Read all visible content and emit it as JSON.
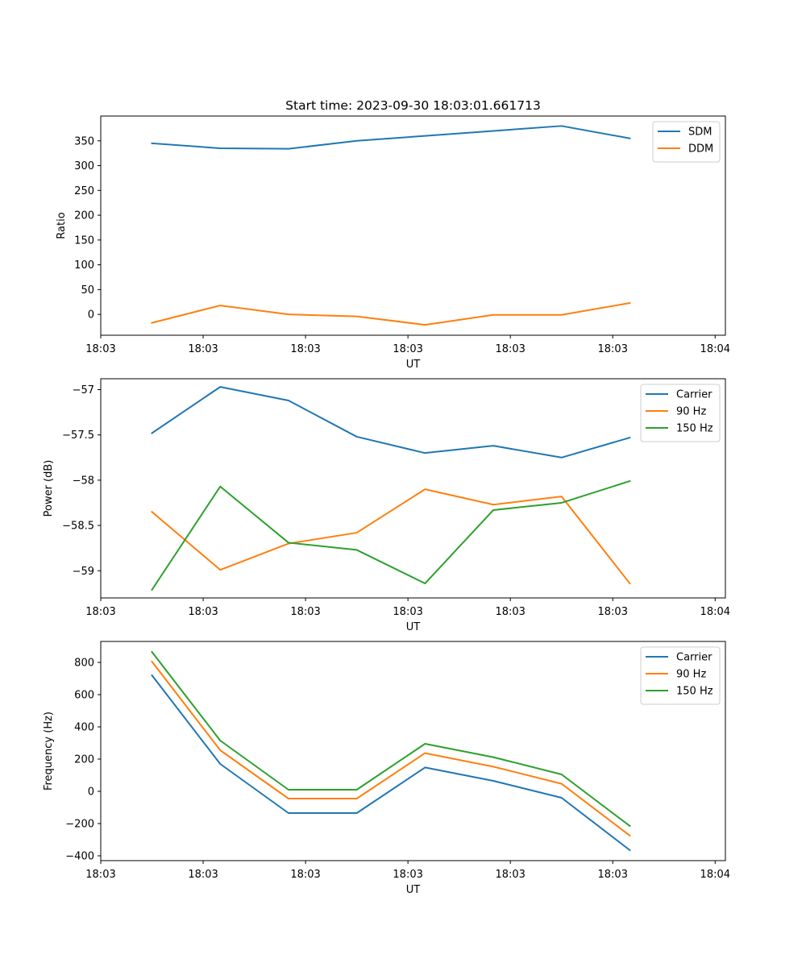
{
  "title": "Start time: 2023-09-30 18:03:01.661713",
  "chart_data": [
    {
      "type": "line",
      "title": "Start time: 2023-09-30 18:03:01.661713",
      "xlabel": "UT",
      "ylabel": "Ratio",
      "x_tick_labels": [
        "18:03",
        "18:03",
        "18:03",
        "18:03",
        "18:03",
        "18:03",
        "18:04"
      ],
      "xlim": [
        -0.75,
        8.4
      ],
      "ylim": [
        -42,
        400
      ],
      "yticks": [
        0,
        50,
        100,
        150,
        200,
        250,
        300,
        350
      ],
      "legend": "top-right",
      "x": [
        0,
        1,
        2,
        3,
        4,
        5,
        6,
        7
      ],
      "series": [
        {
          "name": "SDM",
          "color": "#1f77b4",
          "values": [
            345,
            335,
            334,
            350,
            360,
            370,
            380,
            355
          ]
        },
        {
          "name": "DDM",
          "color": "#ff7f0e",
          "values": [
            -17,
            18,
            0,
            -4,
            -21,
            -1,
            -1,
            23
          ]
        }
      ]
    },
    {
      "type": "line",
      "title": "",
      "xlabel": "UT",
      "ylabel": "Power (dB)",
      "x_tick_labels": [
        "18:03",
        "18:03",
        "18:03",
        "18:03",
        "18:03",
        "18:03",
        "18:04"
      ],
      "xlim": [
        -0.75,
        8.4
      ],
      "ylim": [
        -59.3,
        -56.88
      ],
      "yticks": [
        -59.0,
        -58.5,
        -58.0,
        -57.5,
        -57.0
      ],
      "legend": "top-right",
      "x": [
        0,
        1,
        2,
        3,
        4,
        5,
        6,
        7
      ],
      "series": [
        {
          "name": "Carrier",
          "color": "#1f77b4",
          "values": [
            -57.48,
            -56.97,
            -57.12,
            -57.52,
            -57.7,
            -57.62,
            -57.75,
            -57.53
          ]
        },
        {
          "name": "90 Hz",
          "color": "#ff7f0e",
          "values": [
            -58.35,
            -58.99,
            -58.7,
            -58.58,
            -58.1,
            -58.27,
            -58.18,
            -59.14
          ]
        },
        {
          "name": "150 Hz",
          "color": "#2ca02c",
          "values": [
            -59.21,
            -58.07,
            -58.69,
            -58.77,
            -59.14,
            -58.33,
            -58.25,
            -58.01
          ]
        }
      ]
    },
    {
      "type": "line",
      "title": "",
      "xlabel": "UT",
      "ylabel": "Frequency (Hz)",
      "x_tick_labels": [
        "18:03",
        "18:03",
        "18:03",
        "18:03",
        "18:03",
        "18:03",
        "18:04"
      ],
      "xlim": [
        -0.75,
        8.4
      ],
      "ylim": [
        -430,
        930
      ],
      "yticks": [
        -400,
        -200,
        0,
        200,
        400,
        600,
        800
      ],
      "legend": "top-right",
      "x": [
        0,
        1,
        2,
        3,
        4,
        5,
        6,
        7
      ],
      "series": [
        {
          "name": "Carrier",
          "color": "#1f77b4",
          "values": [
            720,
            170,
            -135,
            -135,
            148,
            65,
            -40,
            -365
          ]
        },
        {
          "name": "90 Hz",
          "color": "#ff7f0e",
          "values": [
            805,
            255,
            -45,
            -45,
            237,
            153,
            47,
            -275
          ]
        },
        {
          "name": "150 Hz",
          "color": "#2ca02c",
          "values": [
            865,
            315,
            10,
            10,
            295,
            212,
            105,
            -215
          ]
        }
      ]
    }
  ]
}
